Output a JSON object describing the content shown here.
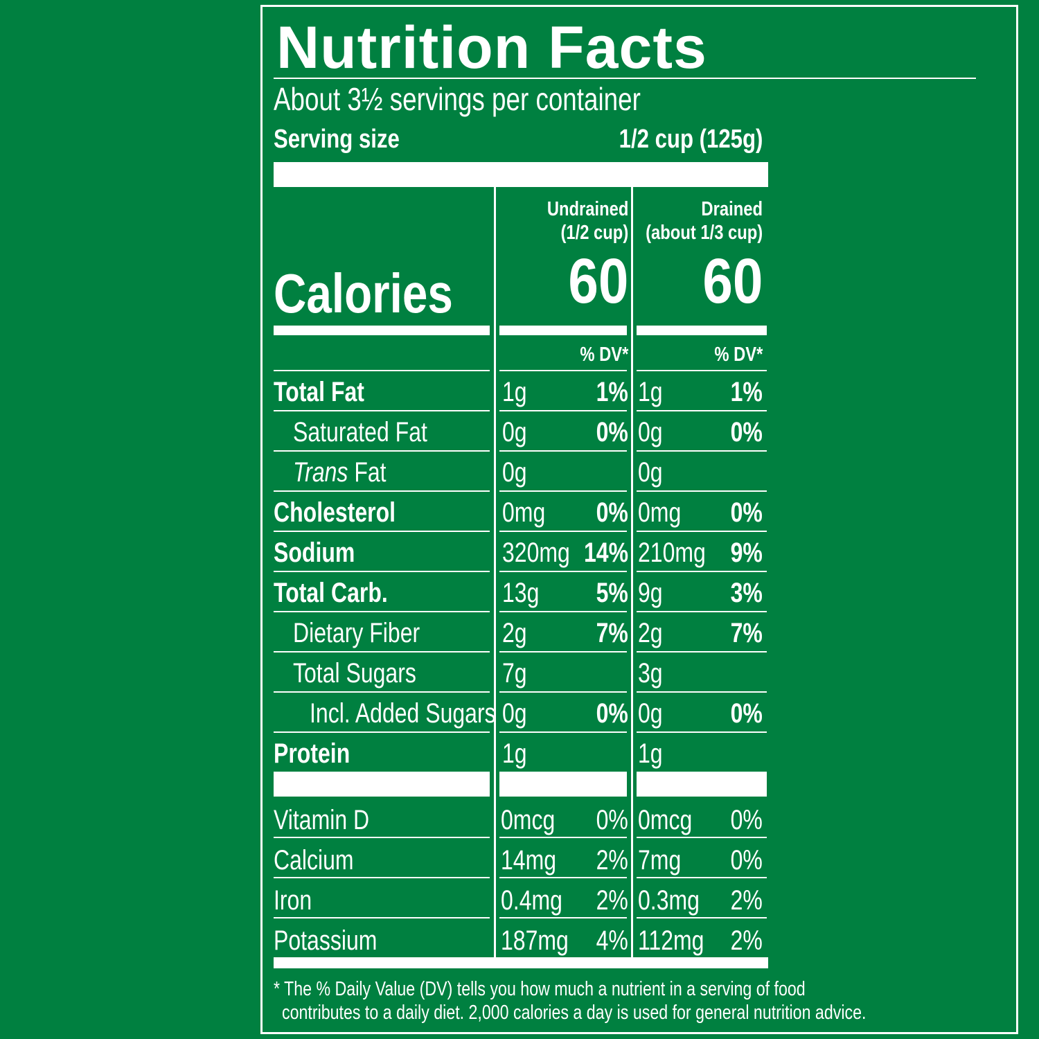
{
  "label": {
    "title": "Nutrition Facts",
    "servings_per_container": "About 3½ servings per container",
    "serving_size_label": "Serving size",
    "serving_size_value": "1/2 cup (125g)",
    "calories_label": "Calories",
    "columns": [
      {
        "line1": "Undrained",
        "line2": "(1/2 cup)",
        "calories": "60",
        "dv_header": "% DV*"
      },
      {
        "line1": "Drained",
        "line2": "(about 1/3 cup)",
        "calories": "60",
        "dv_header": "% DV*"
      }
    ],
    "nutrients": [
      {
        "name": "Total Fat",
        "undrained_amount": "1g",
        "undrained_dv": "1%",
        "drained_amount": "1g",
        "drained_dv": "1%"
      },
      {
        "name": "Saturated Fat",
        "undrained_amount": "0g",
        "undrained_dv": "0%",
        "drained_amount": "0g",
        "drained_dv": "0%"
      },
      {
        "name_italic": "Trans",
        "name_rest": " Fat",
        "undrained_amount": "0g",
        "undrained_dv": "",
        "drained_amount": "0g",
        "drained_dv": ""
      },
      {
        "name": "Cholesterol",
        "undrained_amount": "0mg",
        "undrained_dv": "0%",
        "drained_amount": "0mg",
        "drained_dv": "0%"
      },
      {
        "name": "Sodium",
        "undrained_amount": "320mg",
        "undrained_dv": "14%",
        "drained_amount": "210mg",
        "drained_dv": "9%"
      },
      {
        "name": "Total Carb.",
        "undrained_amount": "13g",
        "undrained_dv": "5%",
        "drained_amount": "9g",
        "drained_dv": "3%"
      },
      {
        "name": "Dietary Fiber",
        "undrained_amount": "2g",
        "undrained_dv": "7%",
        "drained_amount": "2g",
        "drained_dv": "7%"
      },
      {
        "name": "Total Sugars",
        "undrained_amount": "7g",
        "undrained_dv": "",
        "drained_amount": "3g",
        "drained_dv": ""
      },
      {
        "name": "Incl. Added Sugars",
        "undrained_amount": "0g",
        "undrained_dv": "0%",
        "drained_amount": "0g",
        "drained_dv": "0%"
      },
      {
        "name": "Protein",
        "undrained_amount": "1g",
        "undrained_dv": "",
        "drained_amount": "1g",
        "drained_dv": ""
      }
    ],
    "vitamins": [
      {
        "name": "Vitamin D",
        "undrained_amount": "0mcg",
        "undrained_dv": "0%",
        "drained_amount": "0mcg",
        "drained_dv": "0%"
      },
      {
        "name": "Calcium",
        "undrained_amount": "14mg",
        "undrained_dv": "2%",
        "drained_amount": "7mg",
        "drained_dv": "0%"
      },
      {
        "name": "Iron",
        "undrained_amount": "0.4mg",
        "undrained_dv": "2%",
        "drained_amount": "0.3mg",
        "drained_dv": "2%"
      },
      {
        "name": "Potassium",
        "undrained_amount": "187mg",
        "undrained_dv": "4%",
        "drained_amount": "112mg",
        "drained_dv": "2%"
      }
    ],
    "footnote_line1": "* The % Daily Value (DV) tells you how much a nutrient in a serving of food",
    "footnote_line2": "contributes to a daily diet. 2,000 calories a day is used for general nutrition advice.",
    "colors": {
      "background": "#008040",
      "text": "#ffffff"
    }
  }
}
